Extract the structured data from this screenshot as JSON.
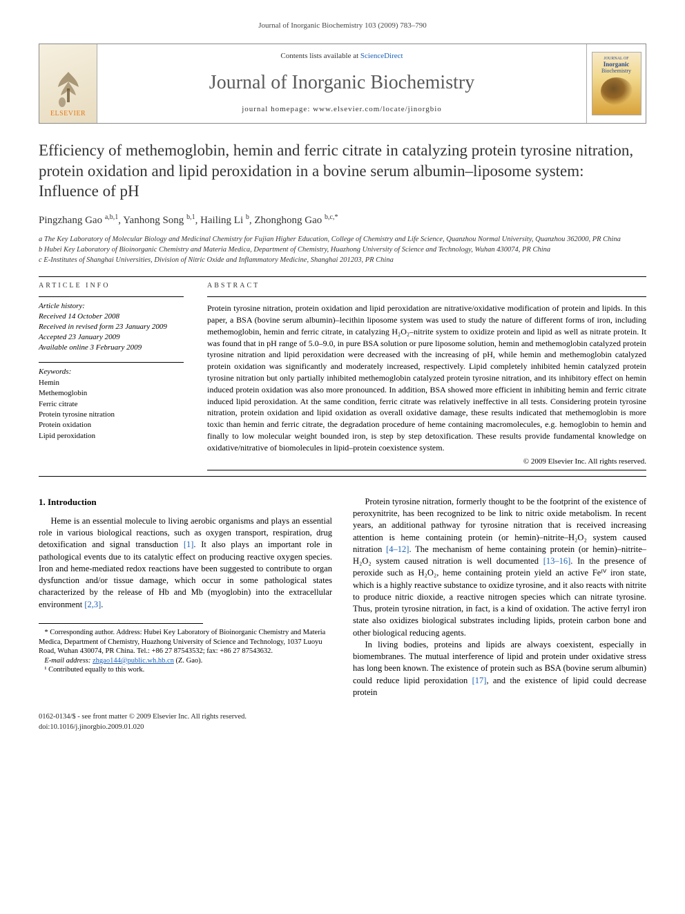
{
  "running_head": "Journal of Inorganic Biochemistry 103 (2009) 783–790",
  "banner": {
    "publisher": "ELSEVIER",
    "contents_prefix": "Contents lists available at ",
    "contents_link": "ScienceDirect",
    "journal_title": "Journal of Inorganic Biochemistry",
    "homepage_label": "journal homepage: www.elsevier.com/locate/jinorgbio",
    "cover_line1": "JOURNAL OF",
    "cover_line2": "Inorganic",
    "cover_line3": "Biochemistry"
  },
  "article": {
    "title": "Efficiency of methemoglobin, hemin and ferric citrate in catalyzing protein tyrosine nitration, protein oxidation and lipid peroxidation in a bovine serum albumin–liposome system: Influence of pH",
    "authors_html": "Pingzhang Gao <sup>a,b,1</sup>, Yanhong Song <sup>b,1</sup>, Hailing Li <sup>b</sup>, Zhonghong Gao <sup>b,c,*</sup>",
    "affiliations": {
      "a": "a The Key Laboratory of Molecular Biology and Medicinal Chemistry for Fujian Higher Education, College of Chemistry and Life Science, Quanzhou Normal University, Quanzhou 362000, PR China",
      "b": "b Hubei Key Laboratory of Bioinorganic Chemistry and Materia Medica, Department of Chemistry, Huazhong University of Science and Technology, Wuhan 430074, PR China",
      "c": "c E-Institutes of Shanghai Universities, Division of Nitric Oxide and Inflammatory Medicine, Shanghai 201203, PR China"
    }
  },
  "info": {
    "label": "ARTICLE INFO",
    "history_head": "Article history:",
    "history": [
      "Received 14 October 2008",
      "Received in revised form 23 January 2009",
      "Accepted 23 January 2009",
      "Available online 3 February 2009"
    ],
    "keywords_head": "Keywords:",
    "keywords": [
      "Hemin",
      "Methemoglobin",
      "Ferric citrate",
      "Protein tyrosine nitration",
      "Protein oxidation",
      "Lipid peroxidation"
    ]
  },
  "abstract": {
    "label": "ABSTRACT",
    "text": "Protein tyrosine nitration, protein oxidation and lipid peroxidation are nitrative/oxidative modification of protein and lipids. In this paper, a BSA (bovine serum albumin)–lecithin liposome system was used to study the nature of different forms of iron, including methemoglobin, hemin and ferric citrate, in catalyzing H₂O₂–nitrite system to oxidize protein and lipid as well as nitrate protein. It was found that in pH range of 5.0–9.0, in pure BSA solution or pure liposome solution, hemin and methemoglobin catalyzed protein tyrosine nitration and lipid peroxidation were decreased with the increasing of pH, while hemin and methemoglobin catalyzed protein oxidation was significantly and moderately increased, respectively. Lipid completely inhibited hemin catalyzed protein tyrosine nitration but only partially inhibited methemoglobin catalyzed protein tyrosine nitration, and its inhibitory effect on hemin induced protein oxidation was also more pronounced. In addition, BSA showed more efficient in inhibiting hemin and ferric citrate induced lipid peroxidation. At the same condition, ferric citrate was relatively ineffective in all tests. Considering protein tyrosine nitration, protein oxidation and lipid oxidation as overall oxidative damage, these results indicated that methemoglobin is more toxic than hemin and ferric citrate, the degradation procedure of heme containing macromolecules, e.g. hemoglobin to hemin and finally to low molecular weight bounded iron, is step by step detoxification. These results provide fundamental knowledge on oxidative/nitrative of biomolecules in lipid–protein coexistence system.",
    "copyright": "© 2009 Elsevier Inc. All rights reserved."
  },
  "body": {
    "heading": "1. Introduction",
    "p1": "Heme is an essential molecule to living aerobic organisms and plays an essential role in various biological reactions, such as oxygen transport, respiration, drug detoxification and signal transduction [1]. It also plays an important role in pathological events due to its catalytic effect on producing reactive oxygen species. Iron and heme-mediated redox reactions have been suggested to contribute to organ dysfunction and/or tissue damage, which occur in some pathological states characterized by the release of Hb and Mb (myoglobin) into the extracellular environment [2,3].",
    "p2": "Protein tyrosine nitration, formerly thought to be the footprint of the existence of peroxynitrite, has been recognized to be link to nitric oxide metabolism. In recent years, an additional pathway for tyrosine nitration that is received increasing attention is heme containing protein (or hemin)–nitrite–H₂O₂ system caused nitration [4–12]. The mechanism of heme containing protein (or hemin)–nitrite–H₂O₂ system caused nitration is well documented [13–16]. In the presence of peroxide such as H₂O₂, heme containing protein yield an active Feᴵⱽ iron state, which is a highly reactive substance to oxidize tyrosine, and it also reacts with nitrite to produce nitric dioxide, a reactive nitrogen species which can nitrate tyrosine. Thus, protein tyrosine nitration, in fact, is a kind of oxidation. The active ferryl iron state also oxidizes biological substrates including lipids, protein carbon bone and other biological reducing agents.",
    "p3": "In living bodies, proteins and lipids are always coexistent, especially in biomembranes. The mutual interference of lipid and protein under oxidative stress has long been known. The existence of protein such as BSA (bovine serum albumin) could reduce lipid peroxidation [17], and the existence of lipid could decrease protein"
  },
  "footnotes": {
    "corr": "* Corresponding author. Address: Hubei Key Laboratory of Bioinorganic Chemistry and Materia Medica, Department of Chemistry, Huazhong University of Science and Technology, 1037 Luoyu Road, Wuhan 430074, PR China. Tel.: +86 27 87543532; fax: +86 27 87543632.",
    "email_label": "E-mail address: ",
    "email": "zhgao144@public.wh.hb.cn",
    "email_suffix": " (Z. Gao).",
    "contrib": "¹ Contributed equally to this work."
  },
  "footer": {
    "left1": "0162-0134/$ - see front matter © 2009 Elsevier Inc. All rights reserved.",
    "left2": "doi:10.1016/j.jinorgbio.2009.01.020"
  },
  "colors": {
    "link": "#1a5fb4",
    "elsevier_orange": "#e67817",
    "text": "#000000",
    "muted": "#5a5a5a"
  }
}
